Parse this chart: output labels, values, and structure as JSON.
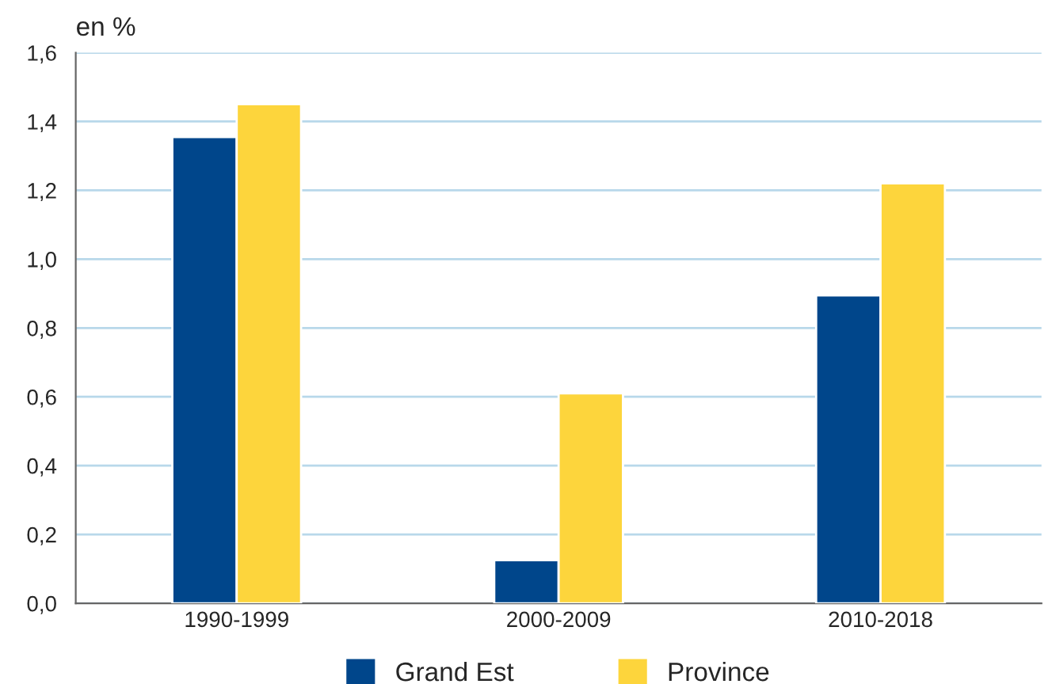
{
  "chart_data": {
    "type": "bar",
    "ylabel": "en %",
    "categories": [
      "1990-1999",
      "2000-2009",
      "2010-2018"
    ],
    "series": [
      {
        "name": "Grand Est",
        "color": "#00468b",
        "values": [
          1.355,
          0.125,
          0.895
        ]
      },
      {
        "name": "Province",
        "color": "#fdd53c",
        "values": [
          1.45,
          0.61,
          1.22
        ]
      }
    ],
    "ylim": [
      0,
      1.6
    ],
    "yticks": [
      {
        "value": 0,
        "label": "0,0"
      },
      {
        "value": 0.2,
        "label": "0,2"
      },
      {
        "value": 0.4,
        "label": "0,4"
      },
      {
        "value": 0.6,
        "label": "0,6"
      },
      {
        "value": 0.8,
        "label": "0,8"
      },
      {
        "value": 1.0,
        "label": "1,0"
      },
      {
        "value": 1.2,
        "label": "1,2"
      },
      {
        "value": 1.4,
        "label": "1,4"
      },
      {
        "value": 1.6,
        "label": "1,6"
      }
    ],
    "grid": "y",
    "legend": "bottom"
  }
}
